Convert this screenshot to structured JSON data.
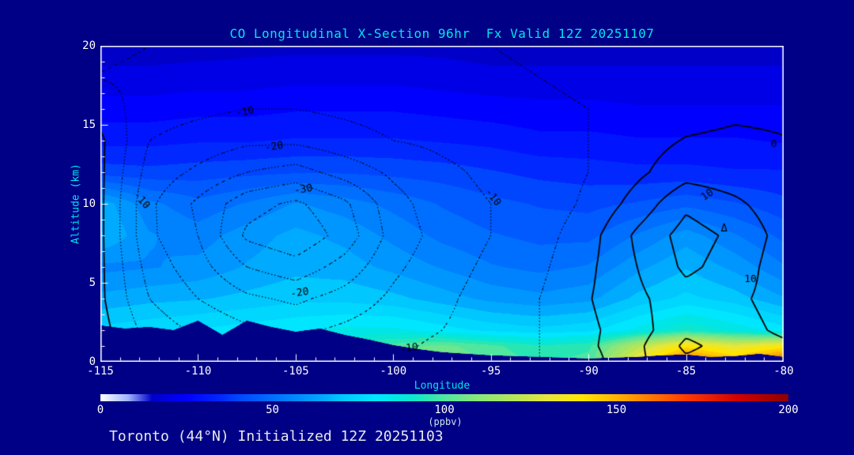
{
  "title": "CO Longitudinal X-Section 96hr  Fx Valid 12Z 20251107",
  "footer": "Toronto (44°N) Initialized 12Z 20251103",
  "colors": {
    "background": "#000087",
    "title_text": "#00e6e6",
    "axis_title_text": "#00e6e6",
    "tick_text": "#ffffff",
    "frame": "#ffffff",
    "terrain": "#000087",
    "contour_line": "#000000"
  },
  "chart_data": {
    "type": "contour",
    "title": "CO Longitudinal X-Section 96hr  Fx Valid 12Z 20251107",
    "xlabel": "Longitude",
    "ylabel": "Altitude (km)",
    "xlim": [
      -115,
      -80
    ],
    "ylim": [
      0,
      20
    ],
    "x_tick_values": [
      -115,
      -110,
      -105,
      -100,
      -95,
      -90,
      -85,
      -80
    ],
    "x_tick_labels": [
      "-115",
      "-110",
      "-105",
      "-100",
      "-95",
      "-90",
      "-85",
      "-80"
    ],
    "x_minor_step": 1,
    "y_tick_values": [
      0,
      5,
      10,
      15,
      20
    ],
    "y_tick_labels": [
      "0",
      "5",
      "10",
      "15",
      "20"
    ],
    "y_minor_step": 1,
    "colorbar": {
      "label": "(ppbv)",
      "min": 0,
      "max": 200,
      "tick_values": [
        0,
        50,
        100,
        150,
        200
      ],
      "tick_labels": [
        "0",
        "50",
        "100",
        "150",
        "200"
      ],
      "stops": [
        [
          0,
          "#ffffff"
        ],
        [
          8,
          "#a0b4ff"
        ],
        [
          15,
          "#0000c8"
        ],
        [
          20,
          "#0000e6"
        ],
        [
          25,
          "#0000ff"
        ],
        [
          30,
          "#0014ff"
        ],
        [
          35,
          "#0028ff"
        ],
        [
          40,
          "#0046ff"
        ],
        [
          45,
          "#005aff"
        ],
        [
          50,
          "#006eff"
        ],
        [
          55,
          "#0082ff"
        ],
        [
          60,
          "#0096ff"
        ],
        [
          65,
          "#00aaff"
        ],
        [
          70,
          "#00c8ff"
        ],
        [
          75,
          "#00d7ff"
        ],
        [
          80,
          "#00e6ff"
        ],
        [
          85,
          "#00e6e6"
        ],
        [
          90,
          "#0ae6d2"
        ],
        [
          95,
          "#28e6b4"
        ],
        [
          100,
          "#50e6a0"
        ],
        [
          105,
          "#6ee68c"
        ],
        [
          110,
          "#8ce678"
        ],
        [
          120,
          "#b4e65a"
        ],
        [
          130,
          "#e6e63c"
        ],
        [
          140,
          "#ffe600"
        ],
        [
          150,
          "#ffb400"
        ],
        [
          160,
          "#ff7800"
        ],
        [
          170,
          "#ff3c00"
        ],
        [
          185,
          "#d20000"
        ],
        [
          200,
          "#8c0000"
        ]
      ]
    },
    "fill_units": "ppbv",
    "fill_band_interval": 5,
    "grid_lons": [
      -115,
      -112.5,
      -110,
      -107.5,
      -105,
      -102.5,
      -100,
      -97.5,
      -95,
      -92.5,
      -90,
      -87.5,
      -85,
      -82.5,
      -80
    ],
    "grid_alts_km": [
      0,
      1,
      2,
      4,
      6,
      8,
      10,
      12,
      14,
      16,
      18,
      20
    ],
    "co_ppbv": [
      [
        80,
        82,
        84,
        86,
        90,
        95,
        102,
        108,
        102,
        96,
        100,
        135,
        165,
        150,
        168
      ],
      [
        79,
        81,
        83,
        85,
        89,
        93,
        100,
        104,
        99,
        93,
        96,
        120,
        140,
        130,
        138
      ],
      [
        74,
        76,
        78,
        80,
        82,
        84,
        84,
        80,
        76,
        74,
        76,
        84,
        92,
        86,
        80
      ],
      [
        64,
        66,
        67,
        69,
        71,
        71,
        69,
        65,
        61,
        59,
        61,
        69,
        74,
        70,
        63
      ],
      [
        56,
        57,
        59,
        63,
        66,
        65,
        61,
        57,
        53,
        51,
        53,
        61,
        67,
        61,
        53
      ],
      [
        68,
        58,
        55,
        60,
        64,
        61,
        56,
        51,
        48,
        46,
        46,
        53,
        60,
        53,
        46
      ],
      [
        66,
        54,
        49,
        53,
        58,
        55,
        51,
        47,
        44,
        42,
        41,
        43,
        46,
        43,
        39
      ],
      [
        40,
        39,
        40,
        41,
        42,
        42,
        41,
        40,
        38,
        36,
        35,
        34,
        34,
        33,
        33
      ],
      [
        31,
        31,
        32,
        32,
        33,
        33,
        33,
        32,
        31,
        29,
        29,
        28,
        28,
        28,
        27
      ],
      [
        25,
        25,
        26,
        26,
        27,
        27,
        27,
        26,
        25,
        24,
        24,
        23,
        23,
        23,
        23
      ],
      [
        19,
        19,
        20,
        20,
        21,
        21,
        21,
        20,
        19,
        19,
        19,
        19,
        19,
        19,
        19
      ],
      [
        15,
        15,
        15,
        16,
        16,
        16,
        16,
        16,
        15,
        15,
        15,
        15,
        15,
        15,
        15
      ]
    ],
    "anomaly_contours": {
      "description": "line contours: negative levels dotted, zero/positive solid",
      "levels_dotted": [
        -35,
        -30,
        -25,
        -20,
        -15,
        -10,
        -5
      ],
      "levels_solid": [
        0,
        5,
        10,
        15
      ],
      "values": [
        [
          2,
          -5,
          -8,
          -10,
          -12,
          -12,
          -10,
          -9,
          -8,
          -5,
          -2,
          4,
          9,
          7,
          6
        ],
        [
          2,
          -6,
          -9,
          -11,
          -13,
          -13,
          -11,
          -9,
          -8,
          -5,
          -1,
          4,
          11,
          8,
          6
        ],
        [
          2,
          -7,
          -11,
          -14,
          -16,
          -14,
          -12,
          -10,
          -8,
          -5,
          -1,
          3,
          9,
          7,
          4
        ],
        [
          1,
          -10,
          -15,
          -19,
          -21,
          -18,
          -14,
          -11,
          -8,
          -5,
          -0.3,
          4,
          8,
          6,
          3
        ],
        [
          1,
          -12,
          -18,
          -25,
          -28,
          -23,
          -16,
          -12,
          -9,
          -6,
          -1,
          5,
          11,
          8,
          2
        ],
        [
          1,
          -14,
          -20,
          -31,
          -34,
          -28,
          -18,
          -13,
          -10,
          -7,
          -2,
          6,
          12,
          9,
          3
        ],
        [
          1,
          -14,
          -21,
          -28,
          -31,
          -26,
          -17,
          -12,
          -10,
          -8,
          -4,
          2,
          9,
          6,
          2
        ],
        [
          1,
          -12,
          -16,
          -20,
          -22,
          -18,
          -14,
          -11,
          -9,
          -8,
          -5,
          -1,
          3,
          2,
          1
        ],
        [
          1,
          -10,
          -12,
          -14,
          -14,
          -12,
          -10,
          -9,
          -8,
          -7,
          -5,
          -2,
          0.3,
          1,
          0.2
        ],
        [
          -2,
          -8,
          -9,
          -10,
          -10,
          -9,
          -8,
          -7,
          -7,
          -6,
          -5,
          -3,
          -2,
          -1,
          -1
        ],
        [
          -5.2,
          -6,
          -7,
          -7,
          -7,
          -7,
          -6,
          -6,
          -6,
          -5,
          -4,
          -3,
          -3,
          -3,
          -2
        ],
        [
          -4,
          -5,
          -6,
          -6,
          -6,
          -6,
          -5,
          -5,
          -5,
          -4,
          -4,
          -3,
          -3,
          -3,
          -2
        ]
      ]
    },
    "terrain_profile": {
      "lons": [
        -115,
        -113.75,
        -112.5,
        -111.25,
        -110,
        -108.75,
        -107.5,
        -106.25,
        -105,
        -103.75,
        -102.5,
        -101.25,
        -100,
        -98.75,
        -97.5,
        -96.25,
        -95,
        -93.75,
        -92.5,
        -91.25,
        -90,
        -88.75,
        -87.5,
        -86.25,
        -85,
        -83.75,
        -82.5,
        -81.25,
        -80
      ],
      "alt_km": [
        2.3,
        2.1,
        2.2,
        2.0,
        2.6,
        1.7,
        2.6,
        2.2,
        1.9,
        2.1,
        1.7,
        1.4,
        1.05,
        0.8,
        0.6,
        0.5,
        0.4,
        0.35,
        0.3,
        0.25,
        0.2,
        0.25,
        0.3,
        0.4,
        0.45,
        0.3,
        0.35,
        0.5,
        0.3
      ]
    },
    "contour_labels": [
      {
        "text": "-10",
        "lon": -107.6,
        "alt": 15.8,
        "rot": -10,
        "line": "dotted"
      },
      {
        "text": "-20",
        "lon": -106.1,
        "alt": 13.6,
        "rot": -8,
        "line": "dotted"
      },
      {
        "text": "-30",
        "lon": -104.6,
        "alt": 10.9,
        "rot": -8,
        "line": "dotted"
      },
      {
        "text": "-20",
        "lon": -104.8,
        "alt": 4.35,
        "rot": -8,
        "line": "dotted"
      },
      {
        "text": "-10",
        "lon": -99.2,
        "alt": 0.85,
        "rot": -5,
        "line": "dotted"
      },
      {
        "text": "-10",
        "lon": -94.9,
        "alt": 10.4,
        "rot": 52,
        "line": "dotted"
      },
      {
        "text": "-10",
        "lon": -112.9,
        "alt": 10.2,
        "rot": 48,
        "line": "dotted"
      },
      {
        "text": "0",
        "lon": -80.5,
        "alt": 13.75,
        "rot": 0,
        "line": "solid"
      },
      {
        "text": "10",
        "lon": -83.9,
        "alt": 10.55,
        "rot": -35,
        "line": "solid"
      },
      {
        "text": "10",
        "lon": -81.7,
        "alt": 5.2,
        "rot": 0,
        "line": "solid"
      }
    ],
    "markers": [
      {
        "symbol": "Δ",
        "lon": -83.05,
        "alt": 8.45
      }
    ]
  }
}
